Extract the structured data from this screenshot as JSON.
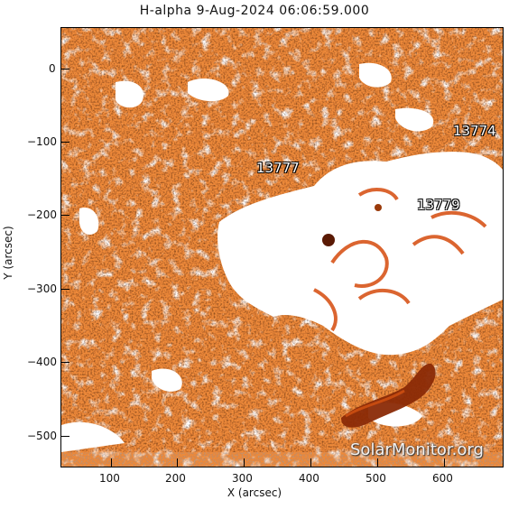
{
  "title": "H-alpha   9-Aug-2024 06:06:59.000",
  "axes": {
    "xlabel": "X (arcsec)",
    "ylabel": "Y (arcsec)",
    "x_ticks": [
      "100",
      "200",
      "300",
      "400",
      "500",
      "600"
    ],
    "y_ticks": [
      "0",
      "−100",
      "−200",
      "−300",
      "−400",
      "−500"
    ]
  },
  "regions": [
    "13774",
    "13777",
    "13779"
  ],
  "watermark": "SolarMonitor.org",
  "colors": {
    "background": "#f39a4c",
    "plage": "#ffffff",
    "filament": "#8a2a06"
  }
}
